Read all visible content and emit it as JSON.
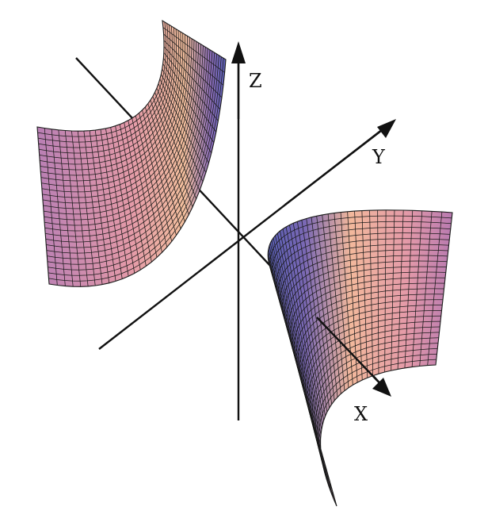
{
  "axes": {
    "x_label": "X",
    "y_label": "Y",
    "z_label": "Z"
  },
  "surface": {
    "sheets": 2,
    "colors": {
      "light": "#f4c09e",
      "mid": "#e49aa8",
      "dark": "#b87ab0",
      "shadow": "#5a5fb6",
      "deep": "#8a6cb6"
    }
  }
}
